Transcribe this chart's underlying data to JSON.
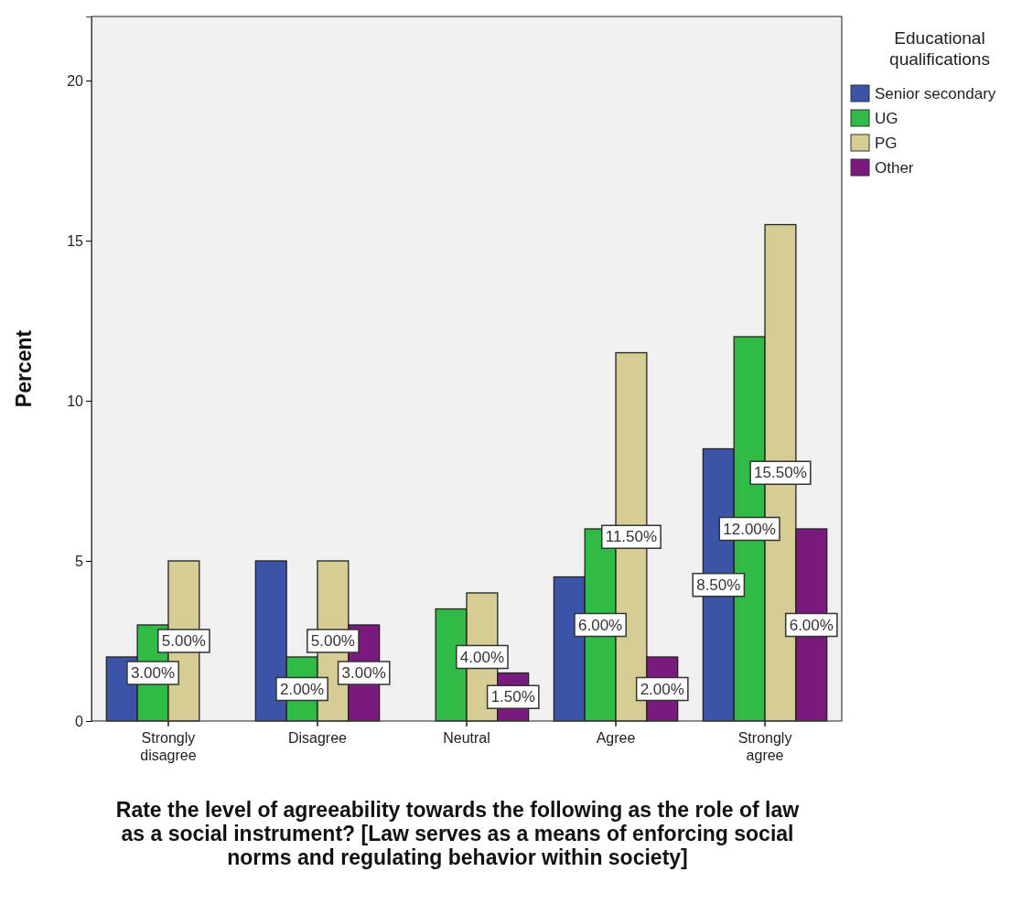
{
  "chart_data": {
    "type": "bar",
    "xlabel": "Rate the level of agreeability towards the following as the role of law as a social instrument? [Law serves as a means of enforcing social norms and regulating behavior within society]",
    "ylabel": "Percent",
    "legend_title": "Educational qualifications",
    "legend": "top right",
    "grid": false,
    "categories": [
      "Strongly disagree",
      "Disagree",
      "Neutral",
      "Agree",
      "Strongly agree"
    ],
    "ylim": [
      0,
      22
    ],
    "yticks": [
      0,
      5,
      10,
      15,
      20
    ],
    "series": [
      {
        "name": "Senior secondary",
        "color": "#3b54a8",
        "values": [
          2,
          5,
          null,
          4.5,
          8.5
        ],
        "value_labels": [
          null,
          null,
          null,
          null,
          "8.50%"
        ]
      },
      {
        "name": "UG",
        "color": "#2fbb45",
        "values": [
          3,
          2,
          3.5,
          6,
          12
        ],
        "value_labels": [
          "3.00%",
          "2.00%",
          null,
          "6.00%",
          "12.00%"
        ]
      },
      {
        "name": "PG",
        "color": "#d5cd93",
        "values": [
          5,
          5,
          4,
          11.5,
          15.5
        ],
        "value_labels": [
          "5.00%",
          "5.00%",
          "4.00%",
          "11.50%",
          "15.50%"
        ]
      },
      {
        "name": "Other",
        "color": "#7a1a7e",
        "values": [
          null,
          3,
          1.5,
          2,
          6
        ],
        "value_labels": [
          null,
          "3.00%",
          "1.50%",
          "2.00%",
          "6.00%"
        ]
      }
    ]
  }
}
